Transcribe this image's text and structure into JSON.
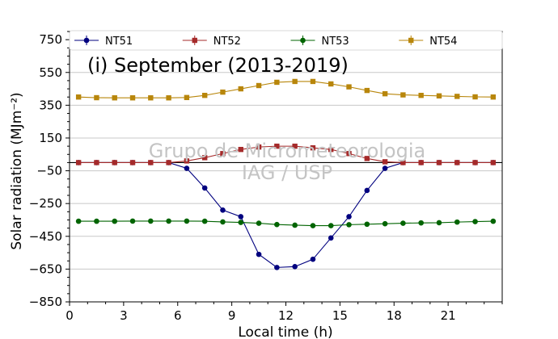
{
  "watermark": [
    "Grupo de Micrometeorologia",
    "IAG / USP"
  ],
  "chart_data": {
    "type": "line",
    "title": "(i) September (2013-2019)",
    "xlabel": "Local time (h)",
    "ylabel": "Solar radiation (MJm⁻²)",
    "xlim": [
      0,
      24
    ],
    "ylim": [
      -850,
      800
    ],
    "xticks": [
      0,
      3,
      6,
      9,
      12,
      15,
      18,
      21
    ],
    "yticks": [
      -850,
      -650,
      -450,
      -250,
      -50,
      150,
      350,
      550,
      750
    ],
    "grid": "horizontal",
    "zero_line": true,
    "legend_position": "top",
    "x": [
      0.5,
      1.5,
      2.5,
      3.5,
      4.5,
      5.5,
      6.5,
      7.5,
      8.5,
      9.5,
      10.5,
      11.5,
      12.5,
      13.5,
      14.5,
      15.5,
      16.5,
      17.5,
      18.5,
      19.5,
      20.5,
      21.5,
      22.5,
      23.5
    ],
    "series": [
      {
        "name": "NT51",
        "color": "#00007f",
        "marker": "circle",
        "values": [
          0,
          0,
          0,
          0,
          0,
          0,
          -35,
          -155,
          -290,
          -330,
          -560,
          -640,
          -635,
          -590,
          -460,
          -330,
          -170,
          -35,
          0,
          0,
          0,
          0,
          0,
          0
        ]
      },
      {
        "name": "NT52",
        "color": "#a52a2a",
        "marker": "square",
        "values": [
          0,
          0,
          0,
          0,
          0,
          0,
          10,
          30,
          55,
          80,
          95,
          100,
          100,
          90,
          80,
          55,
          25,
          5,
          0,
          0,
          0,
          0,
          0,
          0
        ]
      },
      {
        "name": "NT53",
        "color": "#006400",
        "marker": "circle",
        "values": [
          -358,
          -358,
          -358,
          -357,
          -357,
          -357,
          -357,
          -358,
          -362,
          -365,
          -370,
          -378,
          -382,
          -385,
          -385,
          -379,
          -376,
          -373,
          -370,
          -368,
          -367,
          -363,
          -360,
          -358
        ]
      },
      {
        "name": "NT54",
        "color": "#b8860b",
        "marker": "square",
        "values": [
          400,
          396,
          395,
          395,
          395,
          395,
          397,
          410,
          430,
          450,
          470,
          490,
          495,
          495,
          480,
          462,
          440,
          420,
          413,
          410,
          407,
          404,
          401,
          400
        ]
      }
    ]
  }
}
